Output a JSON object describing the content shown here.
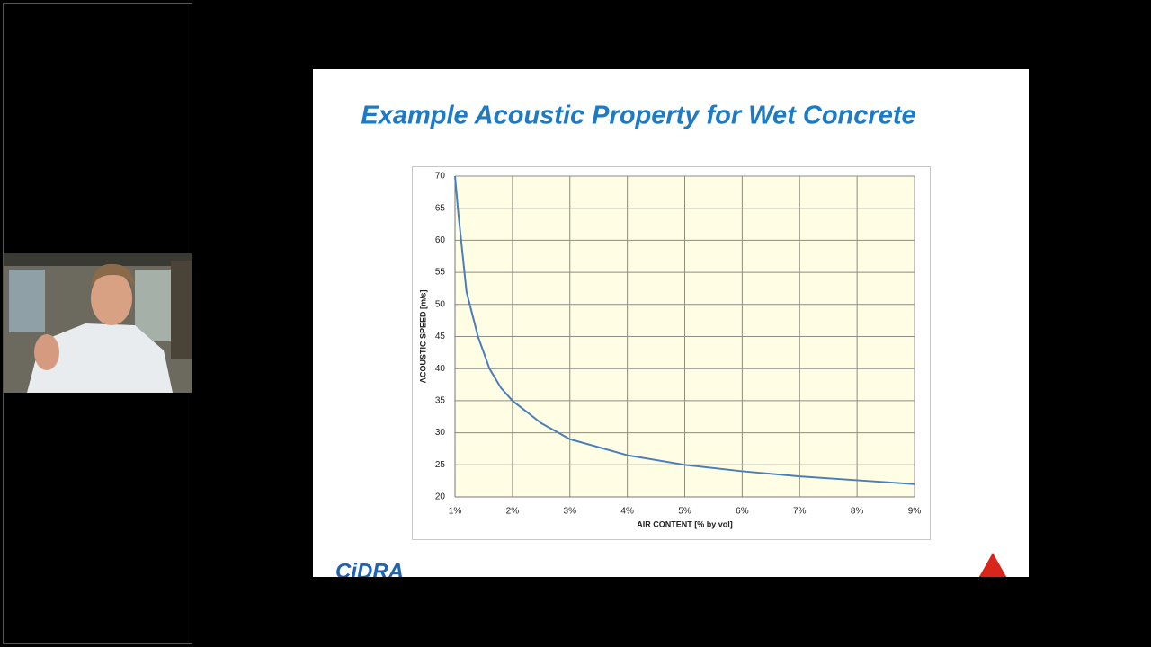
{
  "slide": {
    "logo": "CiDRA"
  },
  "chart_data": {
    "type": "line",
    "title": "Example Acoustic Property for Wet Concrete",
    "x_label": "AIR CONTENT [% by vol]",
    "y_label": "ACOUSTIC SPEED [m/s]",
    "x": [
      1,
      1.06,
      1.2,
      1.4,
      1.6,
      1.8,
      2,
      2.5,
      3,
      4,
      5,
      6,
      7,
      8,
      9
    ],
    "series": [
      {
        "name": "Acoustic speed",
        "color": "#4a7ebb",
        "values": [
          70,
          64,
          52,
          45,
          40,
          37,
          35,
          31.5,
          29,
          26.5,
          25,
          24,
          23.2,
          22.6,
          22
        ]
      }
    ],
    "xlim": [
      1,
      9
    ],
    "xticks": [
      {
        "value": 1,
        "label": "1%"
      },
      {
        "value": 2,
        "label": "2%"
      },
      {
        "value": 3,
        "label": "3%"
      },
      {
        "value": 4,
        "label": "4%"
      },
      {
        "value": 5,
        "label": "5%"
      },
      {
        "value": 6,
        "label": "6%"
      },
      {
        "value": 7,
        "label": "7%"
      },
      {
        "value": 8,
        "label": "8%"
      },
      {
        "value": 9,
        "label": "9%"
      }
    ],
    "ylim": [
      20,
      70
    ],
    "yticks": [
      20,
      25,
      30,
      35,
      40,
      45,
      50,
      55,
      60,
      65,
      70
    ],
    "grid": true
  }
}
